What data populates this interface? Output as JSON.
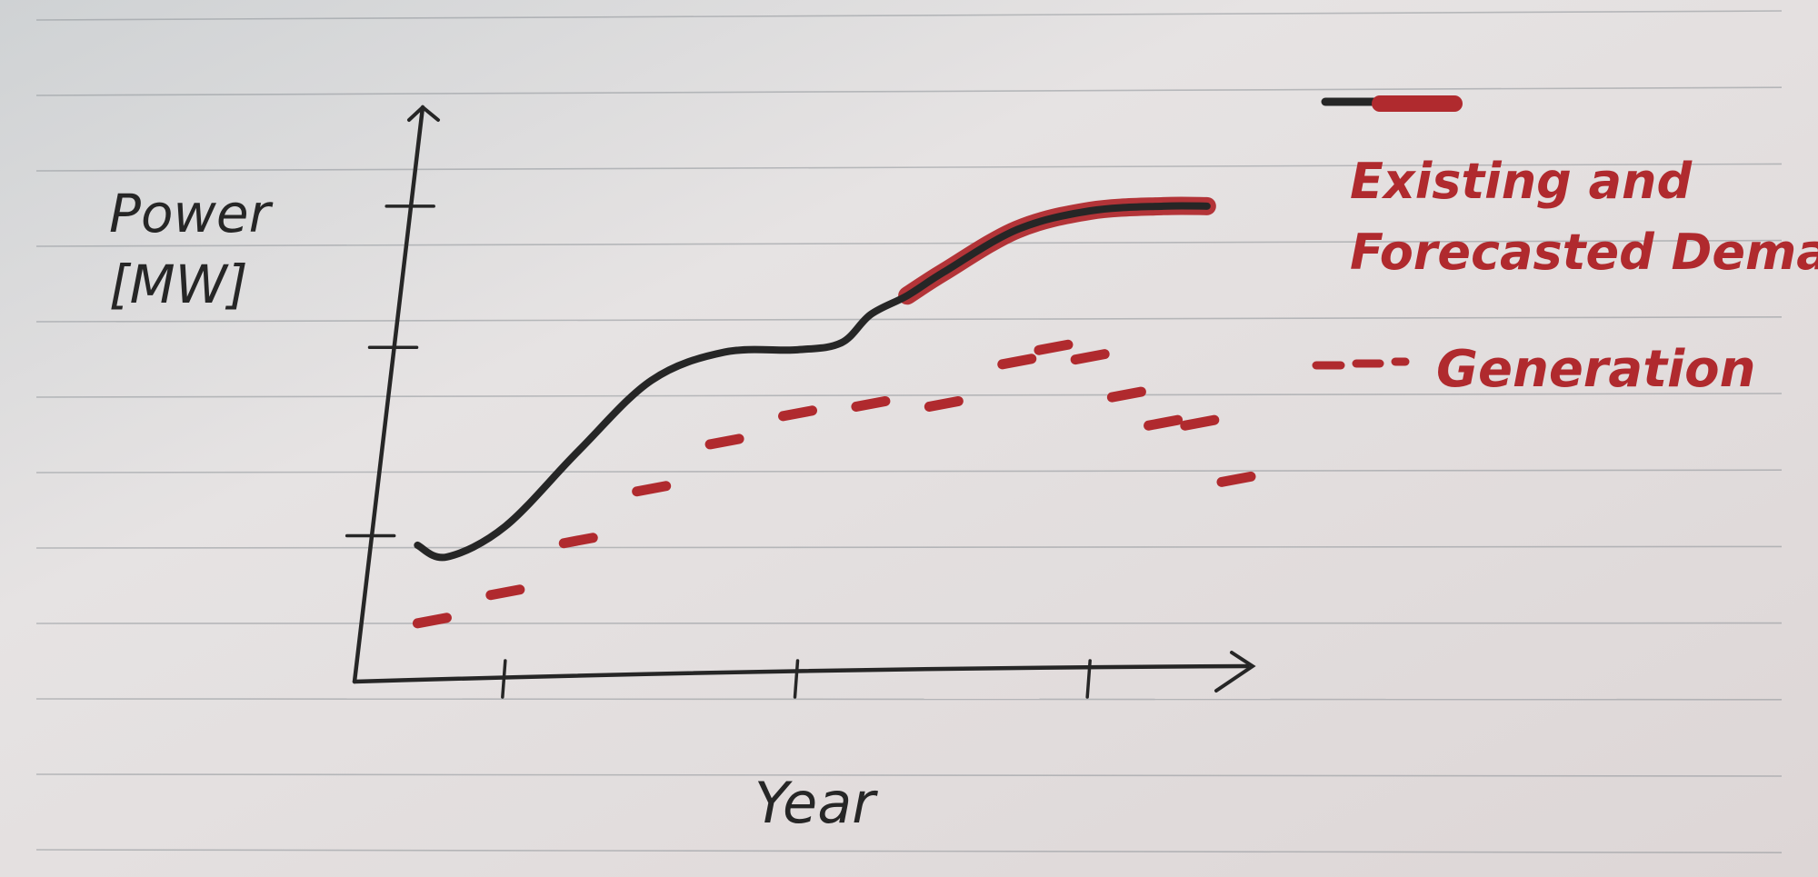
{
  "colors": {
    "paper": "#e4e1e1",
    "rule": "#8f9499",
    "ink": "#262626",
    "demand": "#262626",
    "demand_highlight": "#b02a2e",
    "generation": "#b02a2e"
  },
  "chart_data": {
    "type": "line",
    "title": "",
    "xlabel": "Year",
    "ylabel": "Power\n[MW]",
    "xlim": [
      0,
      12
    ],
    "ylim": [
      0,
      11
    ],
    "x_ticks": [
      2,
      6,
      10
    ],
    "y_ticks": [
      3,
      7,
      10
    ],
    "tick_labels_shown": false,
    "grid": false,
    "legend_position": "right",
    "series": [
      {
        "key": "demand",
        "name": "Existing and\nForecasted Demand",
        "style": "solid",
        "forecast_from_x": 7.5,
        "points": [
          [
            0.8,
            2.8
          ],
          [
            1.2,
            2.55
          ],
          [
            2.0,
            3.2
          ],
          [
            3.0,
            4.8
          ],
          [
            4.0,
            6.3
          ],
          [
            5.0,
            6.9
          ],
          [
            6.0,
            6.95
          ],
          [
            6.6,
            7.1
          ],
          [
            7.0,
            7.7
          ],
          [
            7.5,
            8.1
          ],
          [
            8.0,
            8.6
          ],
          [
            9.0,
            9.5
          ],
          [
            10.0,
            9.9
          ],
          [
            11.0,
            10.0
          ],
          [
            11.6,
            10.0
          ]
        ]
      },
      {
        "key": "generation",
        "name": "Generation",
        "style": "dashed",
        "points": [
          [
            1.0,
            1.2
          ],
          [
            2.0,
            1.8
          ],
          [
            3.0,
            2.9
          ],
          [
            4.0,
            4.0
          ],
          [
            5.0,
            5.0
          ],
          [
            6.0,
            5.6
          ],
          [
            7.0,
            5.8
          ],
          [
            8.0,
            5.8
          ],
          [
            9.0,
            6.7
          ],
          [
            9.5,
            7.0
          ],
          [
            10.0,
            6.8
          ],
          [
            10.5,
            6.0
          ],
          [
            11.0,
            5.4
          ],
          [
            11.5,
            5.4
          ],
          [
            12.0,
            4.2
          ]
        ]
      }
    ]
  }
}
